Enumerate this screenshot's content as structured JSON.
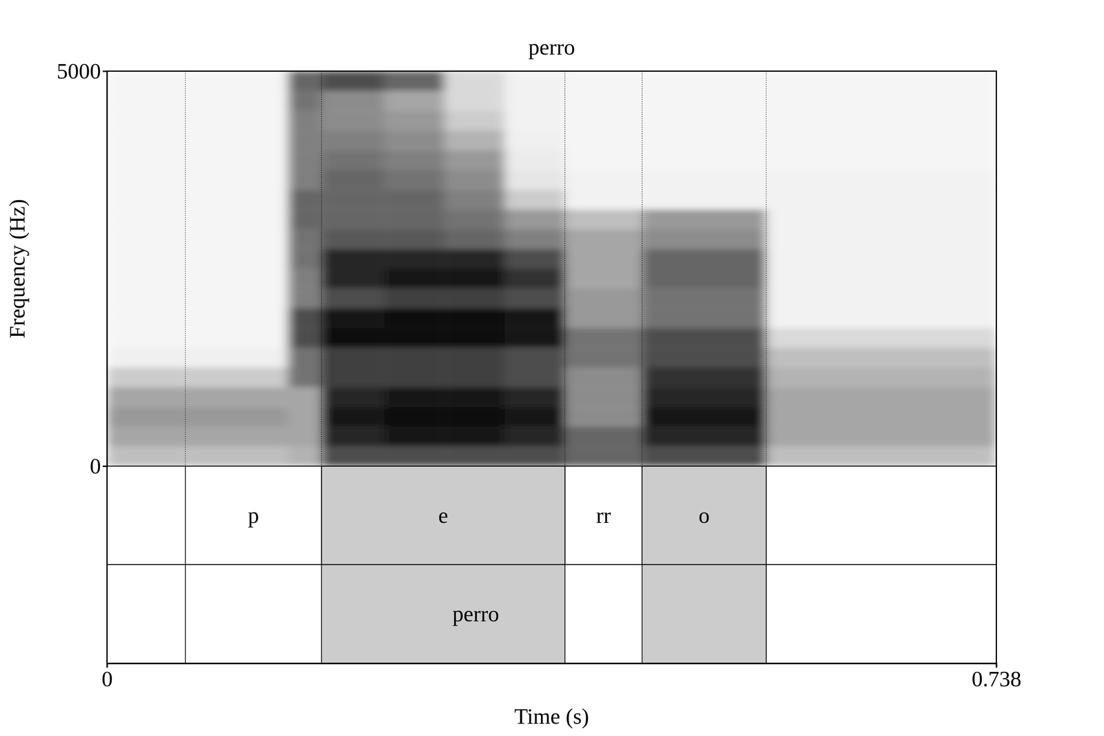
{
  "chart_data": {
    "type": "spectrogram",
    "title": "perro",
    "x_label": "Time (s)",
    "y_label": "Frequency (Hz)",
    "xlim": [
      0,
      0.738
    ],
    "xticks": [
      0,
      0.738
    ],
    "ylim": [
      0,
      5000
    ],
    "yticks": [
      0,
      5000
    ],
    "time_edges": [
      0,
      0.065,
      0.15,
      0.178,
      0.23,
      0.28,
      0.33,
      0.38,
      0.444,
      0.547,
      0.738
    ],
    "freq_edges": [
      0,
      250,
      500,
      750,
      1000,
      1250,
      1500,
      1750,
      2000,
      2250,
      2500,
      2750,
      3000,
      3250,
      3500,
      3750,
      4000,
      4250,
      4500,
      4750,
      5000
    ],
    "cells": [
      [
        0.25,
        0.25,
        0.3,
        0.7,
        0.7,
        0.7,
        0.7,
        0.6,
        0.7,
        0.25
      ],
      [
        0.35,
        0.35,
        0.35,
        0.85,
        0.9,
        0.9,
        0.85,
        0.6,
        0.85,
        0.35
      ],
      [
        0.4,
        0.4,
        0.35,
        0.9,
        0.95,
        0.95,
        0.9,
        0.45,
        0.9,
        0.35
      ],
      [
        0.35,
        0.35,
        0.35,
        0.85,
        0.9,
        0.9,
        0.85,
        0.45,
        0.85,
        0.35
      ],
      [
        0.2,
        0.2,
        0.55,
        0.75,
        0.75,
        0.75,
        0.7,
        0.45,
        0.8,
        0.3
      ],
      [
        0.06,
        0.06,
        0.55,
        0.75,
        0.75,
        0.75,
        0.7,
        0.55,
        0.7,
        0.25
      ],
      [
        0.04,
        0.04,
        0.7,
        0.95,
        0.95,
        0.95,
        0.9,
        0.55,
        0.7,
        0.15
      ],
      [
        0.04,
        0.04,
        0.7,
        0.9,
        0.95,
        0.95,
        0.9,
        0.4,
        0.55,
        0.05
      ],
      [
        0.04,
        0.04,
        0.5,
        0.7,
        0.75,
        0.75,
        0.7,
        0.4,
        0.55,
        0.05
      ],
      [
        0.04,
        0.04,
        0.5,
        0.85,
        0.9,
        0.9,
        0.8,
        0.35,
        0.6,
        0.05
      ],
      [
        0.04,
        0.04,
        0.55,
        0.85,
        0.85,
        0.85,
        0.7,
        0.35,
        0.6,
        0.05
      ],
      [
        0.04,
        0.04,
        0.55,
        0.65,
        0.65,
        0.6,
        0.5,
        0.35,
        0.45,
        0.05
      ],
      [
        0.04,
        0.04,
        0.6,
        0.6,
        0.6,
        0.55,
        0.4,
        0.25,
        0.4,
        0.05
      ],
      [
        0.04,
        0.04,
        0.6,
        0.6,
        0.6,
        0.5,
        0.2,
        0.05,
        0.05,
        0.05
      ],
      [
        0.04,
        0.04,
        0.5,
        0.6,
        0.55,
        0.45,
        0.1,
        0.05,
        0.05,
        0.05
      ],
      [
        0.04,
        0.04,
        0.5,
        0.55,
        0.5,
        0.4,
        0.08,
        0.04,
        0.04,
        0.04
      ],
      [
        0.04,
        0.04,
        0.5,
        0.5,
        0.45,
        0.3,
        0.06,
        0.04,
        0.04,
        0.04
      ],
      [
        0.04,
        0.04,
        0.5,
        0.45,
        0.4,
        0.2,
        0.05,
        0.04,
        0.04,
        0.04
      ],
      [
        0.04,
        0.04,
        0.55,
        0.45,
        0.35,
        0.15,
        0.05,
        0.04,
        0.04,
        0.04
      ],
      [
        0.04,
        0.04,
        0.6,
        0.7,
        0.6,
        0.15,
        0.05,
        0.04,
        0.04,
        0.04
      ]
    ],
    "tiers": [
      {
        "intervals": [
          {
            "start": 0.065,
            "end": 0.178,
            "text": "p"
          },
          {
            "start": 0.178,
            "end": 0.38,
            "text": "e"
          },
          {
            "start": 0.38,
            "end": 0.444,
            "text": "rr"
          },
          {
            "start": 0.444,
            "end": 0.547,
            "text": "o"
          }
        ]
      },
      {
        "intervals": [
          {
            "start": 0.065,
            "end": 0.547,
            "text": "perro"
          }
        ]
      }
    ],
    "highlights": [
      [
        0.178,
        0.38
      ],
      [
        0.444,
        0.547
      ]
    ]
  }
}
